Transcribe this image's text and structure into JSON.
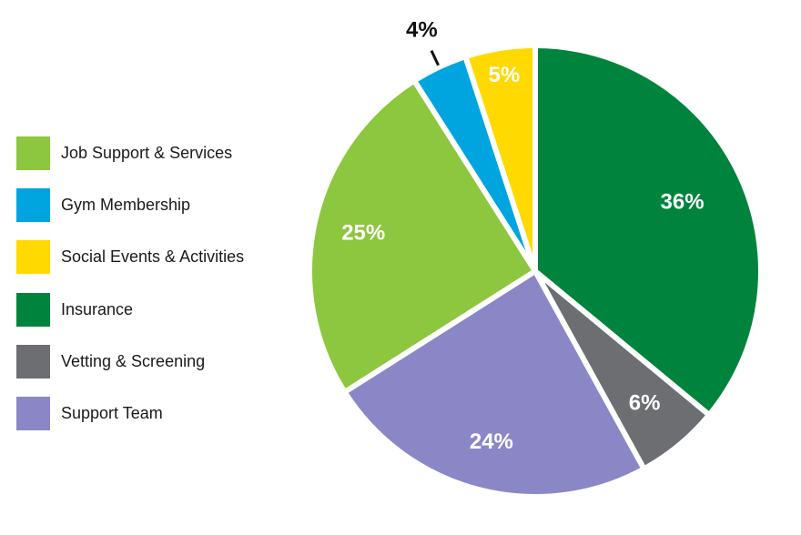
{
  "chart_data": {
    "type": "pie",
    "title": "",
    "legend_position": "left",
    "slices": [
      {
        "name": "Insurance",
        "value": 36,
        "label": "36%",
        "color": "#00843d"
      },
      {
        "name": "Vetting & Screening",
        "value": 6,
        "label": "6%",
        "color": "#6d6e71"
      },
      {
        "name": "Support Team",
        "value": 24,
        "label": "24%",
        "color": "#8b87c6"
      },
      {
        "name": "Job Support & Services",
        "value": 25,
        "label": "25%",
        "color": "#8dc63f"
      },
      {
        "name": "Gym Membership",
        "value": 4,
        "label": "4%",
        "color": "#00a5df"
      },
      {
        "name": "Social Events & Activities",
        "value": 5,
        "label": "5%",
        "color": "#ffd900"
      }
    ],
    "legend": [
      {
        "label": "Job Support & Services",
        "color": "#8dc63f"
      },
      {
        "label": "Gym Membership",
        "color": "#00a5df"
      },
      {
        "label": "Social Events & Activities",
        "color": "#ffd900"
      },
      {
        "label": "Insurance",
        "color": "#00843d"
      },
      {
        "label": "Vetting & Screening",
        "color": "#6d6e71"
      },
      {
        "label": "Support Team",
        "color": "#8b87c6"
      }
    ]
  }
}
